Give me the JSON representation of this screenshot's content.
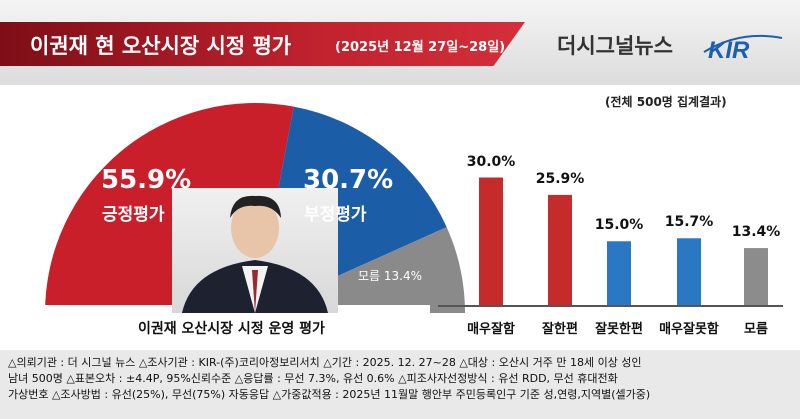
{
  "header": {
    "title": "이권재 현 오산시장 시정 평가",
    "date": "(2025년 12월 27일~28일)",
    "brand": "더시그널뉴스",
    "logo_text": "KIR"
  },
  "survey_note": "(전체 500명 집계결과)",
  "pie": {
    "caption": "이권재 오산시장 시정 운영 평가",
    "segments": [
      {
        "label": "긍정평가",
        "value_text": "55.9%",
        "value": 55.9,
        "color": "#c91f2b"
      },
      {
        "label": "부정평가",
        "value_text": "30.7%",
        "value": 30.7,
        "color": "#1c5da8"
      },
      {
        "label": "모름",
        "value_text": "13.4%",
        "value": 13.4,
        "color": "#8a8a8a"
      }
    ],
    "small_label": "모름 13.4%"
  },
  "chart_data": {
    "type": "bar",
    "categories": [
      "매우잘함",
      "잘한편",
      "잘못한편",
      "매우잘못함",
      "모름"
    ],
    "values": [
      30.0,
      25.9,
      15.0,
      15.7,
      13.4
    ],
    "value_labels": [
      "30.0%",
      "25.9%",
      "15.0%",
      "15.7%",
      "13.4%"
    ],
    "colors": [
      "#c62b2b",
      "#c62b2b",
      "#2a78c4",
      "#2a78c4",
      "#8c8c8c"
    ],
    "ylim": [
      0,
      40
    ]
  },
  "footer": {
    "line1": "△의뢰기관 : 더 시그널 뉴스   △조사기관 : KIR-(주)코리아정보리서치   △기간 : 2025. 12. 27~28   △대상 : 오산시 거주 만 18세 이상 성인",
    "line2": "남녀 500명  △표본오차 : ±4.4P, 95%신뢰수준  △응답률 : 무선 7.3%, 유선 0.6%   △피조사자선정방식 : 유선 RDD, 무선 휴대전화",
    "line3": "가상번호  △조사방법 : 유선(25%), 무선(75%) 자동응답   △가중값적용 : 2025년 11월말 행안부 주민등록인구 기준 성,연령,지역별(셀가중)"
  }
}
